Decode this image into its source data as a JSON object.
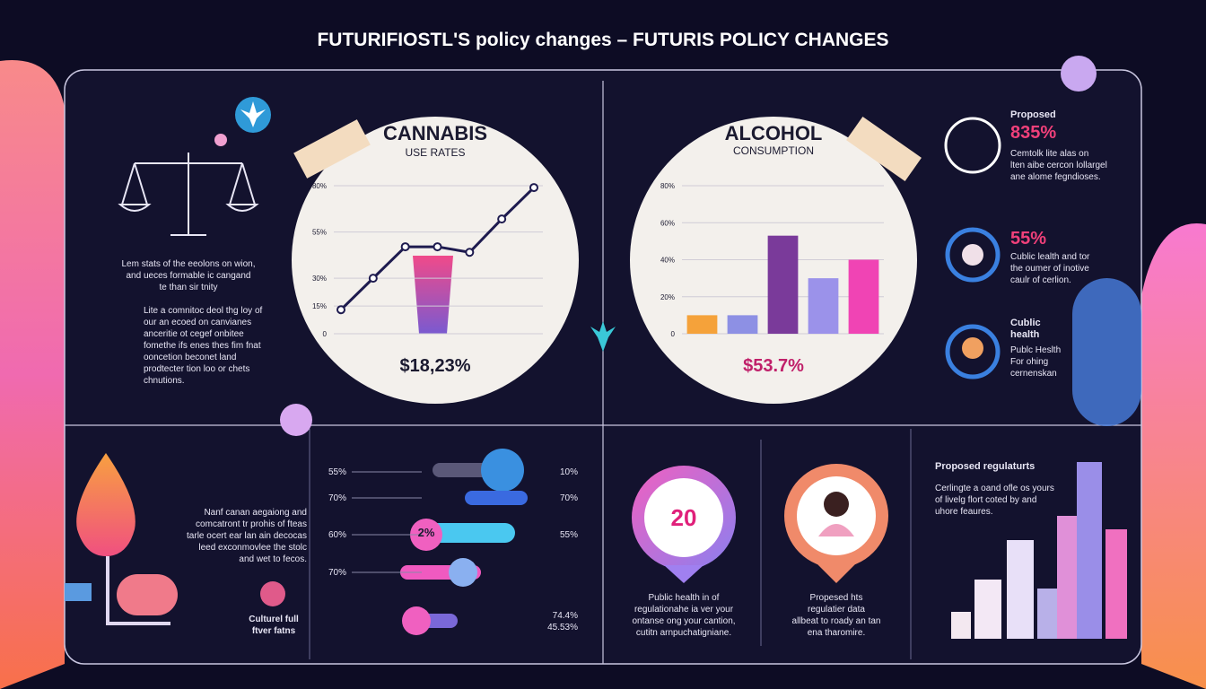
{
  "header": {
    "title": "FUTURIFIOSTL'S policy changes – FUTURIS POLICY CHANGES"
  },
  "left_panel": {
    "text1": "Lem stats of the eeolons on wion,\nand ueces formable ic cangand\nte than sir tnity",
    "text2": "Lite a comnitoc deol thg loy of\nour an ecoed on canvianes\nanceritie ot cegef onbitee\nfomethe ifs enes thes fim fnat\nooncetion beconet land\nprodtecter tion loo or chets\nchnutions."
  },
  "cannabis": {
    "title": "CANNABIS",
    "subtitle": "USE RATES",
    "ylim": [
      0,
      80
    ],
    "yticks": [
      {
        "value": 80,
        "label": "80%"
      },
      {
        "value": 55,
        "label": "55%"
      },
      {
        "value": 30,
        "label": "30%"
      },
      {
        "value": 15,
        "label": "15%"
      },
      0
    ],
    "values": [
      13,
      30,
      47,
      47,
      44,
      62,
      79
    ],
    "color": "#1e1b4f",
    "total": "$18,23%"
  },
  "alcohol": {
    "title": "ALCOHOL",
    "subtitle": "CONSUMPTION",
    "ylim": [
      0,
      80
    ],
    "yticks": [
      {
        "value": 80,
        "label": "80%"
      },
      {
        "value": 60,
        "label": "60%"
      },
      {
        "value": 40,
        "label": "40%"
      },
      {
        "value": 20,
        "label": "20%"
      },
      0
    ],
    "values": [
      10,
      10,
      53,
      30,
      40
    ],
    "colors": [
      "#f5a23a",
      "#8d90e4",
      "#7a3a9a",
      "#9b92ea",
      "#f044b4"
    ],
    "total": "$53.7%"
  },
  "right_panel": {
    "item1_label": "Proposed",
    "item1_value": "835%",
    "item1_text": "Cemtolk lite alas on\nlten aibe cercon lollargel\nane alome fegndioses.",
    "item2_value": "55%",
    "item2_text": "Cublic lealth and tor\nthe oumer of inotive\ncaulr of cerlion.",
    "item3_title": "Cublic\nhealth",
    "item3_text": "Publc Heslth\nFor ohing\ncernenskan"
  },
  "bottom_left": {
    "text": "Nanf canan aegaiong and\ncomcatront tr prohis of fteas\ntarle ocert ear lan ain decocas\nleed exconmovlee the stolc\nand wet to fecos.",
    "caption": "Culturel full\nftver fatns"
  },
  "bottom_bars": {
    "left_labels": [
      "55%",
      "70%",
      "60%",
      "70%"
    ],
    "right_labels": [
      "10%",
      "70%",
      "55%",
      "74.4%\n45.53%"
    ],
    "tag": "2%"
  },
  "bottom_center": {
    "donut_value": "20",
    "text1": "Public health in of\nregulationahe ia ver your\nontanse ong your cantion,\ncutitn arnpuchatigniane.",
    "text2": "Propesed hts\nregulatier data\nallbeat to roady an tan\nena tharomire."
  },
  "bottom_right": {
    "title": "Proposed regulaturts",
    "text": "Cerlingte a oand ofle os yours\nof livelg flort coted by and\nuhore feaures."
  }
}
